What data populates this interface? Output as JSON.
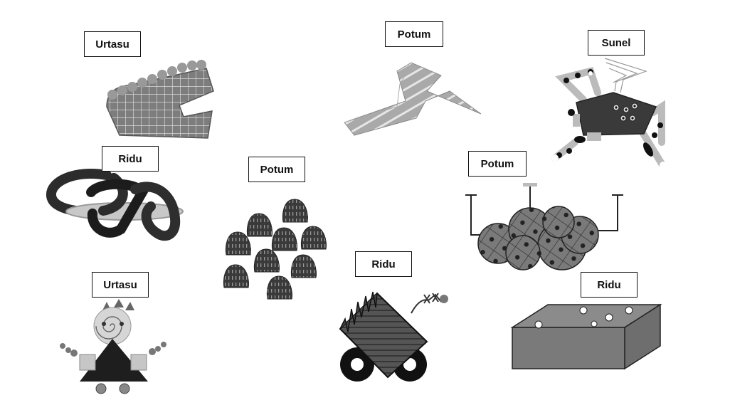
{
  "items": [
    {
      "label": "Urtasu",
      "icon": "grid-shape-icon"
    },
    {
      "label": "Potum",
      "icon": "zigzag-shape-icon"
    },
    {
      "label": "Sunel",
      "icon": "pentagon-creature-icon"
    },
    {
      "label": "Ridu",
      "icon": "chain-rings-icon"
    },
    {
      "label": "Potum",
      "icon": "seed-cluster-icon"
    },
    {
      "label": "Potum",
      "icon": "cloud-shape-icon"
    },
    {
      "label": "Urtasu",
      "icon": "figure-shape-icon"
    },
    {
      "label": "Ridu",
      "icon": "wheeled-object-icon"
    },
    {
      "label": "Ridu",
      "icon": "box-shape-icon"
    }
  ]
}
